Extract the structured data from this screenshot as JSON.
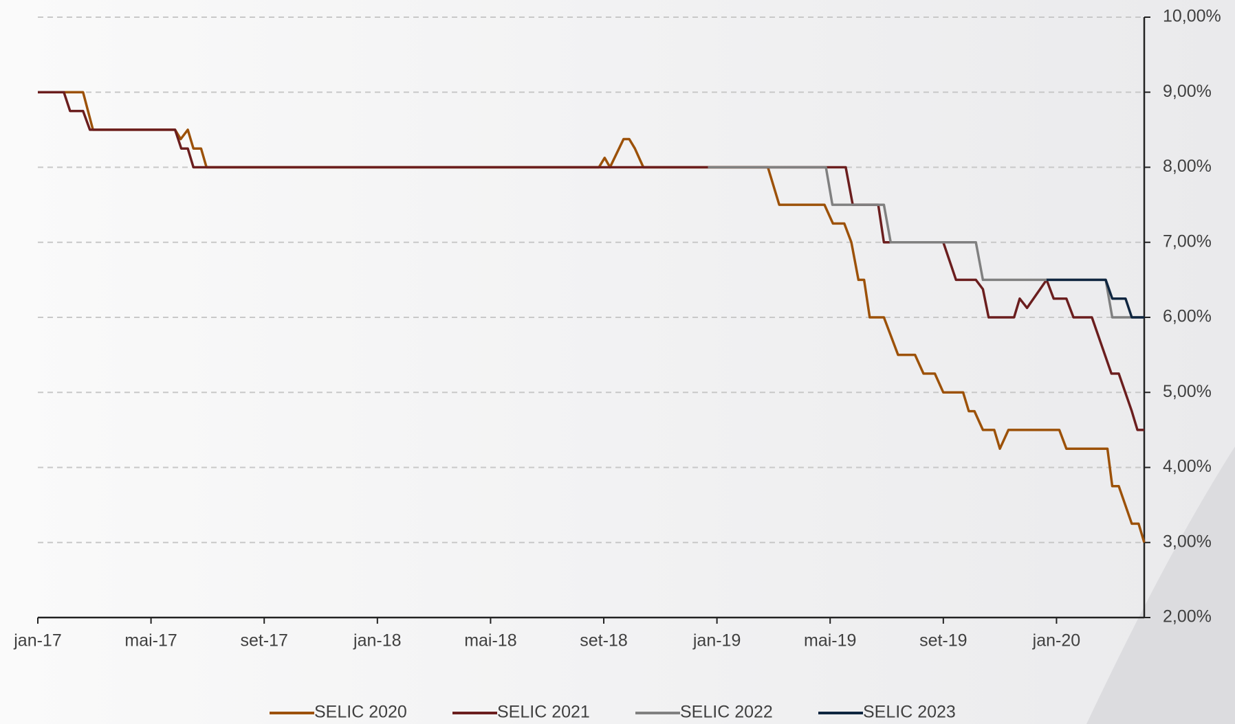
{
  "chart_data": {
    "type": "line",
    "xlim": [
      0,
      39.1
    ],
    "xticks": [
      {
        "value": 0,
        "label": "jan-17"
      },
      {
        "value": 4,
        "label": "mai-17"
      },
      {
        "value": 8,
        "label": "set-17"
      },
      {
        "value": 12,
        "label": "jan-18"
      },
      {
        "value": 16,
        "label": "mai-18"
      },
      {
        "value": 20,
        "label": "set-18"
      },
      {
        "value": 24,
        "label": "jan-19"
      },
      {
        "value": 28,
        "label": "mai-19"
      },
      {
        "value": 32,
        "label": "set-19"
      },
      {
        "value": 36,
        "label": "jan-20"
      }
    ],
    "ylim": [
      2,
      10
    ],
    "yticks": [
      {
        "value": 2,
        "label": "2,00%"
      },
      {
        "value": 3,
        "label": "3,00%"
      },
      {
        "value": 4,
        "label": "4,00%"
      },
      {
        "value": 5,
        "label": "5,00%"
      },
      {
        "value": 6,
        "label": "6,00%"
      },
      {
        "value": 7,
        "label": "7,00%"
      },
      {
        "value": 8,
        "label": "8,00%"
      },
      {
        "value": 9,
        "label": "9,00%"
      },
      {
        "value": 10,
        "label": "10,00%"
      }
    ],
    "grid": true,
    "legend": "bottom",
    "series": [
      {
        "name": "SELIC 2020",
        "color": "#9c5108",
        "x": [
          0,
          1.6,
          1.95,
          4.85,
          5.05,
          5.3,
          5.5,
          5.77,
          5.96,
          19.83,
          20.03,
          20.22,
          20.7,
          20.9,
          21.1,
          21.4,
          25.8,
          26.2,
          27.8,
          28.1,
          28.5,
          28.75,
          29.0,
          29.2,
          29.4,
          29.9,
          30.4,
          31.0,
          31.3,
          31.7,
          32.0,
          32.7,
          32.9,
          33.1,
          33.4,
          33.8,
          34.0,
          34.3,
          36.1,
          36.35,
          37.8,
          37.97,
          38.2,
          38.66,
          38.9,
          39.1
        ],
        "values": [
          9.0,
          9.0,
          8.5,
          8.5,
          8.375,
          8.5,
          8.25,
          8.25,
          8.0,
          8.0,
          8.125,
          8.0,
          8.375,
          8.375,
          8.25,
          8.0,
          8.0,
          7.5,
          7.5,
          7.25,
          7.25,
          7.0,
          6.5,
          6.5,
          6.0,
          6.0,
          5.5,
          5.5,
          5.25,
          5.25,
          5.0,
          5.0,
          4.75,
          4.75,
          4.5,
          4.5,
          4.25,
          4.5,
          4.5,
          4.25,
          4.25,
          3.75,
          3.75,
          3.25,
          3.25,
          3.0
        ]
      },
      {
        "name": "SELIC 2021",
        "color": "#6b1e1e",
        "x": [
          0,
          0.92,
          1.14,
          1.6,
          1.84,
          4.85,
          5.07,
          5.3,
          5.5,
          28.55,
          28.8,
          29.7,
          29.9,
          32.0,
          32.45,
          33.15,
          33.4,
          33.6,
          34.5,
          34.7,
          34.96,
          35.65,
          35.9,
          36.35,
          36.6,
          37.25,
          37.94,
          38.2,
          38.66,
          38.86,
          39.1
        ],
        "values": [
          9.0,
          9.0,
          8.75,
          8.75,
          8.5,
          8.5,
          8.25,
          8.25,
          8.0,
          8.0,
          7.5,
          7.5,
          7.0,
          7.0,
          6.5,
          6.5,
          6.375,
          6.0,
          6.0,
          6.25,
          6.125,
          6.5,
          6.25,
          6.25,
          6.0,
          6.0,
          5.25,
          5.25,
          4.75,
          4.5,
          4.5
        ]
      },
      {
        "name": "SELIC 2022",
        "color": "#808080",
        "x": [
          23.68,
          27.85,
          28.08,
          29.9,
          30.14,
          33.15,
          33.4,
          37.74,
          37.97,
          39.1
        ],
        "values": [
          8.0,
          8.0,
          7.5,
          7.5,
          7.0,
          7.0,
          6.5,
          6.5,
          6.0,
          6.0
        ]
      },
      {
        "name": "SELIC 2023",
        "color": "#0f2640",
        "x": [
          35.65,
          37.74,
          37.97,
          38.44,
          38.66,
          39.1
        ],
        "values": [
          6.5,
          6.5,
          6.25,
          6.25,
          6.0,
          6.0
        ]
      }
    ]
  }
}
